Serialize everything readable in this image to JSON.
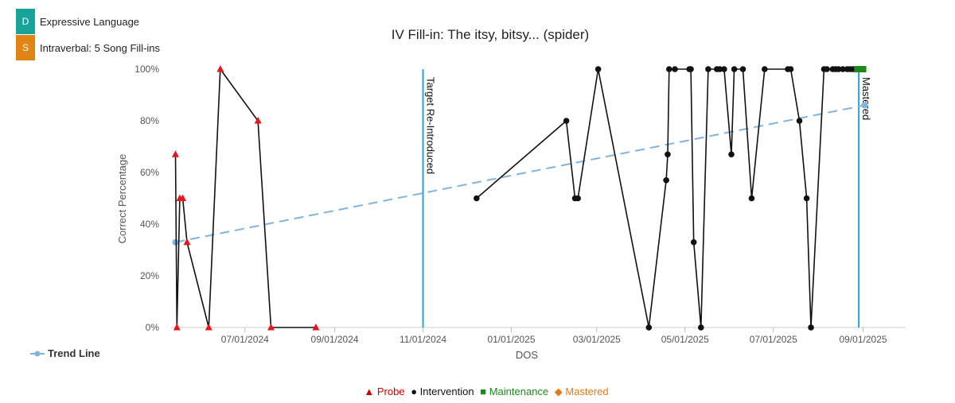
{
  "tags": [
    {
      "letter": "D",
      "label": "Expressive Language",
      "color": "#17a398"
    },
    {
      "letter": "S",
      "label": "Intraverbal: 5 Song Fill-ins",
      "color": "#e08414"
    }
  ],
  "chart_data": {
    "type": "line",
    "title": "IV Fill-in: The itsy, bitsy... (spider)",
    "xlabel": "DOS",
    "ylabel": "Correct Percentage",
    "ylim": [
      0,
      100
    ],
    "y_ticks": [
      "0%",
      "20%",
      "40%",
      "60%",
      "80%",
      "100%"
    ],
    "x_range": [
      "2024-05-11",
      "2025-09-15"
    ],
    "x_ticks": [
      {
        "date": "2024-07-01",
        "label": "07/01/2024"
      },
      {
        "date": "2024-09-01",
        "label": "09/01/2024"
      },
      {
        "date": "2024-11-01",
        "label": "11/01/2024"
      },
      {
        "date": "2025-01-01",
        "label": "01/01/2025"
      },
      {
        "date": "2025-03-01",
        "label": "03/01/2025"
      },
      {
        "date": "2025-05-01",
        "label": "05/01/2025"
      },
      {
        "date": "2025-07-01",
        "label": "07/01/2025"
      },
      {
        "date": "2025-09-01",
        "label": "09/01/2025"
      }
    ],
    "grid": false,
    "colors": {
      "probe": "#e8141e",
      "intervention": "#111111",
      "maintenance": "#1a8a1a",
      "mastered": "#e07b1a",
      "trend": "#7fb4e0",
      "phase_line": "#29a3dc"
    },
    "phase_lines": [
      {
        "date": "2024-11-01",
        "label": "Target Re-Introduced"
      },
      {
        "date": "2025-08-29",
        "label": "Mastered"
      }
    ],
    "series": [
      {
        "name": "Probe",
        "marker": "triangle",
        "points": [
          {
            "x": "2024-05-14",
            "y": 67
          },
          {
            "x": "2024-05-15",
            "y": 0
          },
          {
            "x": "2024-05-17",
            "y": 50
          },
          {
            "x": "2024-05-19",
            "y": 50
          },
          {
            "x": "2024-05-22",
            "y": 33
          },
          {
            "x": "2024-06-06",
            "y": 0
          },
          {
            "x": "2024-06-14",
            "y": 100
          },
          {
            "x": "2024-07-10",
            "y": 80
          },
          {
            "x": "2024-07-19",
            "y": 0
          },
          {
            "x": "2024-08-19",
            "y": 0
          }
        ]
      },
      {
        "name": "Intervention",
        "marker": "circle",
        "points": [
          {
            "x": "2024-12-08",
            "y": 50
          },
          {
            "x": "2025-02-08",
            "y": 80
          },
          {
            "x": "2025-02-14",
            "y": 50
          },
          {
            "x": "2025-02-16",
            "y": 50
          },
          {
            "x": "2025-03-02",
            "y": 100
          },
          {
            "x": "2025-04-06",
            "y": 0
          },
          {
            "x": "2025-04-18",
            "y": 57
          },
          {
            "x": "2025-04-19",
            "y": 67
          },
          {
            "x": "2025-04-20",
            "y": 100
          },
          {
            "x": "2025-04-24",
            "y": 100
          },
          {
            "x": "2025-05-04",
            "y": 100
          },
          {
            "x": "2025-05-05",
            "y": 100
          },
          {
            "x": "2025-05-07",
            "y": 33
          },
          {
            "x": "2025-05-12",
            "y": 0
          },
          {
            "x": "2025-05-17",
            "y": 100
          },
          {
            "x": "2025-05-23",
            "y": 100
          },
          {
            "x": "2025-05-25",
            "y": 100
          },
          {
            "x": "2025-05-28",
            "y": 100
          },
          {
            "x": "2025-06-02",
            "y": 67
          },
          {
            "x": "2025-06-04",
            "y": 100
          },
          {
            "x": "2025-06-10",
            "y": 100
          },
          {
            "x": "2025-06-16",
            "y": 50
          },
          {
            "x": "2025-06-25",
            "y": 100
          },
          {
            "x": "2025-07-11",
            "y": 100
          },
          {
            "x": "2025-07-13",
            "y": 100
          },
          {
            "x": "2025-07-19",
            "y": 80
          },
          {
            "x": "2025-07-24",
            "y": 50
          },
          {
            "x": "2025-07-27",
            "y": 0
          },
          {
            "x": "2025-08-05",
            "y": 100
          },
          {
            "x": "2025-08-07",
            "y": 100
          },
          {
            "x": "2025-08-11",
            "y": 100
          },
          {
            "x": "2025-08-13",
            "y": 100
          },
          {
            "x": "2025-08-15",
            "y": 100
          },
          {
            "x": "2025-08-18",
            "y": 100
          },
          {
            "x": "2025-08-21",
            "y": 100
          },
          {
            "x": "2025-08-23",
            "y": 100
          },
          {
            "x": "2025-08-25",
            "y": 100
          }
        ]
      },
      {
        "name": "Maintenance",
        "marker": "square",
        "points": [
          {
            "x": "2025-08-28",
            "y": 100
          },
          {
            "x": "2025-08-30",
            "y": 100
          },
          {
            "x": "2025-09-01",
            "y": 100
          }
        ]
      },
      {
        "name": "Mastered",
        "marker": "diamond",
        "points": []
      }
    ],
    "trend_line": {
      "name": "Trend Line",
      "points": [
        {
          "x": "2024-05-14",
          "y": 33
        },
        {
          "x": "2025-09-02",
          "y": 86
        }
      ]
    }
  }
}
